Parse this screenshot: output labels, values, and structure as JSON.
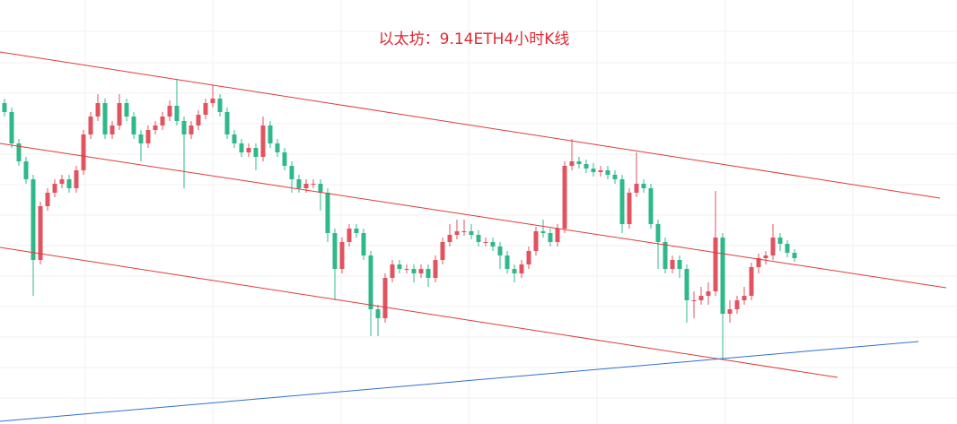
{
  "chart_data": {
    "type": "candlestick",
    "title": "以太坊：9.14ETH4小时K线",
    "up_color": "#e0535f",
    "down_color": "#2fb88a",
    "ylim": [
      27,
      500
    ],
    "open": [
      385,
      375,
      340,
      320,
      300,
      210,
      270,
      285,
      295,
      300,
      290,
      310,
      350,
      370,
      385,
      350,
      360,
      385,
      370,
      350,
      340,
      355,
      360,
      370,
      382,
      365,
      350,
      360,
      372,
      385,
      390,
      375,
      350,
      340,
      330,
      335,
      325,
      360,
      340,
      330,
      315,
      300,
      290,
      295,
      295,
      285,
      240,
      200,
      230,
      245,
      240,
      215,
      155,
      145,
      190,
      205,
      200,
      200,
      195,
      200,
      190,
      210,
      230,
      238,
      242,
      242,
      238,
      230,
      230,
      225,
      215,
      200,
      195,
      205,
      220,
      242,
      240,
      230,
      245,
      315,
      320,
      317,
      312,
      308,
      310,
      305,
      300,
      250,
      285,
      295,
      290,
      250,
      230,
      200,
      210,
      200,
      165,
      165,
      170,
      175,
      235,
      150,
      155,
      165,
      170,
      202,
      212,
      215,
      235,
      228,
      218
    ],
    "high": [
      390,
      380,
      345,
      325,
      305,
      275,
      290,
      300,
      305,
      305,
      315,
      355,
      375,
      395,
      390,
      365,
      395,
      390,
      375,
      355,
      360,
      365,
      375,
      388,
      412,
      370,
      365,
      377,
      390,
      405,
      395,
      380,
      355,
      345,
      340,
      340,
      370,
      365,
      345,
      335,
      320,
      305,
      300,
      300,
      300,
      290,
      245,
      235,
      250,
      250,
      245,
      220,
      160,
      195,
      210,
      210,
      205,
      205,
      205,
      205,
      215,
      235,
      250,
      255,
      255,
      250,
      243,
      235,
      235,
      230,
      220,
      205,
      210,
      225,
      247,
      255,
      245,
      250,
      320,
      345,
      325,
      322,
      318,
      315,
      315,
      310,
      305,
      290,
      330,
      300,
      295,
      255,
      235,
      215,
      215,
      205,
      175,
      180,
      185,
      287,
      240,
      165,
      170,
      180,
      207,
      217,
      220,
      250,
      240,
      232,
      222
    ],
    "low": [
      370,
      335,
      315,
      295,
      170,
      205,
      265,
      280,
      290,
      285,
      285,
      305,
      345,
      365,
      345,
      345,
      355,
      365,
      345,
      320,
      335,
      350,
      355,
      365,
      360,
      290,
      345,
      355,
      367,
      380,
      370,
      345,
      335,
      325,
      325,
      310,
      320,
      335,
      325,
      310,
      285,
      285,
      285,
      290,
      265,
      230,
      165,
      195,
      225,
      235,
      210,
      125,
      125,
      140,
      185,
      195,
      195,
      185,
      190,
      180,
      185,
      205,
      225,
      233,
      237,
      233,
      225,
      225,
      220,
      200,
      195,
      185,
      190,
      200,
      215,
      235,
      225,
      225,
      240,
      310,
      312,
      307,
      303,
      303,
      300,
      295,
      240,
      245,
      280,
      285,
      245,
      200,
      195,
      195,
      190,
      140,
      145,
      160,
      160,
      170,
      100,
      140,
      150,
      160,
      165,
      195,
      205,
      210,
      220,
      213,
      208
    ],
    "close": [
      375,
      340,
      320,
      300,
      210,
      270,
      285,
      295,
      300,
      290,
      310,
      350,
      370,
      385,
      350,
      360,
      385,
      370,
      350,
      340,
      355,
      360,
      370,
      382,
      365,
      350,
      360,
      372,
      385,
      390,
      375,
      350,
      340,
      330,
      335,
      325,
      360,
      340,
      330,
      315,
      300,
      290,
      295,
      295,
      285,
      240,
      200,
      230,
      245,
      240,
      215,
      155,
      145,
      190,
      205,
      200,
      200,
      195,
      200,
      190,
      210,
      230,
      238,
      242,
      242,
      238,
      230,
      230,
      225,
      215,
      200,
      195,
      205,
      220,
      242,
      240,
      230,
      245,
      315,
      320,
      317,
      312,
      308,
      310,
      305,
      300,
      250,
      285,
      295,
      290,
      250,
      230,
      200,
      210,
      200,
      165,
      165,
      170,
      175,
      235,
      150,
      155,
      165,
      170,
      202,
      212,
      215,
      235,
      228,
      218,
      212
    ]
  }
}
